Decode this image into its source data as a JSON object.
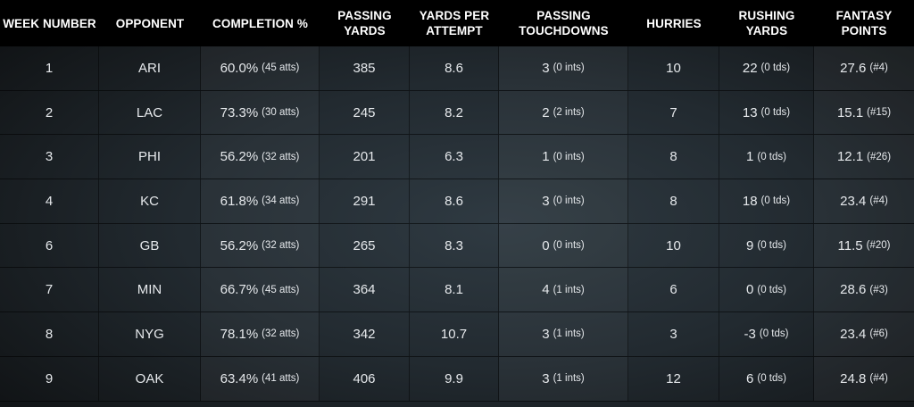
{
  "headers": [
    "WEEK NUMBER",
    "OPPONENT",
    "COMPLETION %",
    "PASSING\nYARDS",
    "YARDS PER\nATTEMPT",
    "PASSING\nTOUCHDOWNS",
    "HURRIES",
    "RUSHING\nYARDS",
    "FANTASY\nPOINTS"
  ],
  "rows": [
    {
      "week": "1",
      "opp": "ARI",
      "comp": "60.0%",
      "comp_sub": "(45 atts)",
      "pass_yds": "385",
      "ypa": "8.6",
      "ptd": "3",
      "ptd_sub": "(0 ints)",
      "hurries": "10",
      "rush": "22",
      "rush_sub": "(0 tds)",
      "fp": "27.6",
      "fp_sub": "(#4)"
    },
    {
      "week": "2",
      "opp": "LAC",
      "comp": "73.3%",
      "comp_sub": "(30 atts)",
      "pass_yds": "245",
      "ypa": "8.2",
      "ptd": "2",
      "ptd_sub": "(2 ints)",
      "hurries": "7",
      "rush": "13",
      "rush_sub": "(0 tds)",
      "fp": "15.1",
      "fp_sub": "(#15)"
    },
    {
      "week": "3",
      "opp": "PHI",
      "comp": "56.2%",
      "comp_sub": "(32 atts)",
      "pass_yds": "201",
      "ypa": "6.3",
      "ptd": "1",
      "ptd_sub": "(0 ints)",
      "hurries": "8",
      "rush": "1",
      "rush_sub": "(0 tds)",
      "fp": "12.1",
      "fp_sub": "(#26)"
    },
    {
      "week": "4",
      "opp": "KC",
      "comp": "61.8%",
      "comp_sub": "(34 atts)",
      "pass_yds": "291",
      "ypa": "8.6",
      "ptd": "3",
      "ptd_sub": "(0 ints)",
      "hurries": "8",
      "rush": "18",
      "rush_sub": "(0 tds)",
      "fp": "23.4",
      "fp_sub": "(#4)"
    },
    {
      "week": "6",
      "opp": "GB",
      "comp": "56.2%",
      "comp_sub": "(32 atts)",
      "pass_yds": "265",
      "ypa": "8.3",
      "ptd": "0",
      "ptd_sub": "(0 ints)",
      "hurries": "10",
      "rush": "9",
      "rush_sub": "(0 tds)",
      "fp": "11.5",
      "fp_sub": "(#20)"
    },
    {
      "week": "7",
      "opp": "MIN",
      "comp": "66.7%",
      "comp_sub": "(45 atts)",
      "pass_yds": "364",
      "ypa": "8.1",
      "ptd": "4",
      "ptd_sub": "(1 ints)",
      "hurries": "6",
      "rush": "0",
      "rush_sub": "(0 tds)",
      "fp": "28.6",
      "fp_sub": "(#3)"
    },
    {
      "week": "8",
      "opp": "NYG",
      "comp": "78.1%",
      "comp_sub": "(32 atts)",
      "pass_yds": "342",
      "ypa": "10.7",
      "ptd": "3",
      "ptd_sub": "(1 ints)",
      "hurries": "3",
      "rush": "-3",
      "rush_sub": "(0 tds)",
      "fp": "23.4",
      "fp_sub": "(#6)"
    },
    {
      "week": "9",
      "opp": "OAK",
      "comp": "63.4%",
      "comp_sub": "(41 atts)",
      "pass_yds": "406",
      "ypa": "9.9",
      "ptd": "3",
      "ptd_sub": "(1 ints)",
      "hurries": "12",
      "rush": "6",
      "rush_sub": "(0 tds)",
      "fp": "24.8",
      "fp_sub": "(#4)"
    }
  ]
}
